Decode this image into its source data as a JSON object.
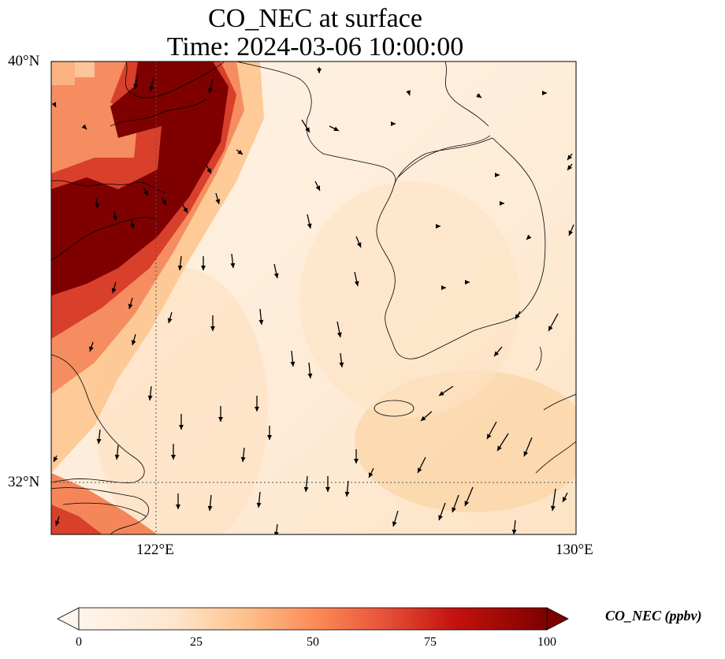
{
  "title": {
    "line1": "CO_NEC at surface",
    "line2": "Time: 2024-03-06 10:00:00"
  },
  "axes": {
    "lat_ticks": [
      "40°N",
      "32°N"
    ],
    "lon_ticks": [
      "122°E",
      "130°E"
    ],
    "lat_range": [
      31,
      40
    ],
    "lon_range": [
      120,
      130
    ],
    "gridlines": "dotted at 122°E and 32°N"
  },
  "colorbar": {
    "label": "CO_NEC (ppbv)",
    "ticks": [
      "0",
      "25",
      "50",
      "75",
      "100"
    ],
    "min": 0,
    "max": 100,
    "extend": "both",
    "colormap": [
      "#fff5eb",
      "#fdd0a2",
      "#fdae6b",
      "#f16913",
      "#d94801",
      "#a50f15",
      "#7f0000"
    ]
  },
  "colors": {
    "coastline": "#000000",
    "background": "#fff5eb",
    "plume": "#7f0000"
  }
}
